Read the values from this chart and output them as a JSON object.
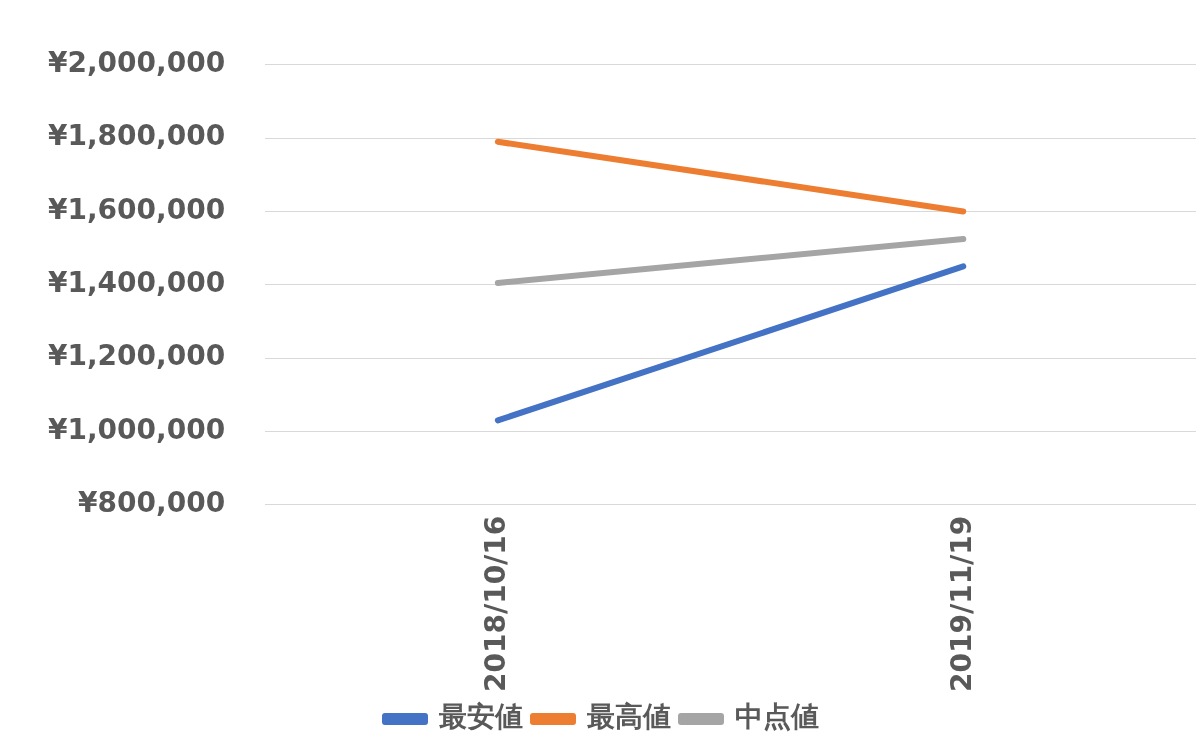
{
  "chart_data": {
    "type": "line",
    "categories": [
      "2018/10/16",
      "2019/11/19"
    ],
    "series": [
      {
        "name": "最安値",
        "color": "#4472c4",
        "values": [
          1030000,
          1450000
        ]
      },
      {
        "name": "最高値",
        "color": "#ed7d31",
        "values": [
          1790000,
          1600000
        ]
      },
      {
        "name": "中点値",
        "color": "#a5a5a5",
        "values": [
          1405000,
          1525000
        ]
      }
    ],
    "ylim": [
      800000,
      2000000
    ],
    "yticks": [
      {
        "value": 800000,
        "label": "¥800,000"
      },
      {
        "value": 1000000,
        "label": "¥1,000,000"
      },
      {
        "value": 1200000,
        "label": "¥1,200,000"
      },
      {
        "value": 1400000,
        "label": "¥1,400,000"
      },
      {
        "value": 1600000,
        "label": "¥1,600,000"
      },
      {
        "value": 1800000,
        "label": "¥1,800,000"
      },
      {
        "value": 2000000,
        "label": "¥2,000,000"
      }
    ],
    "grid": "y",
    "legend": "bottom",
    "marker": "none",
    "line_style": "solid"
  }
}
